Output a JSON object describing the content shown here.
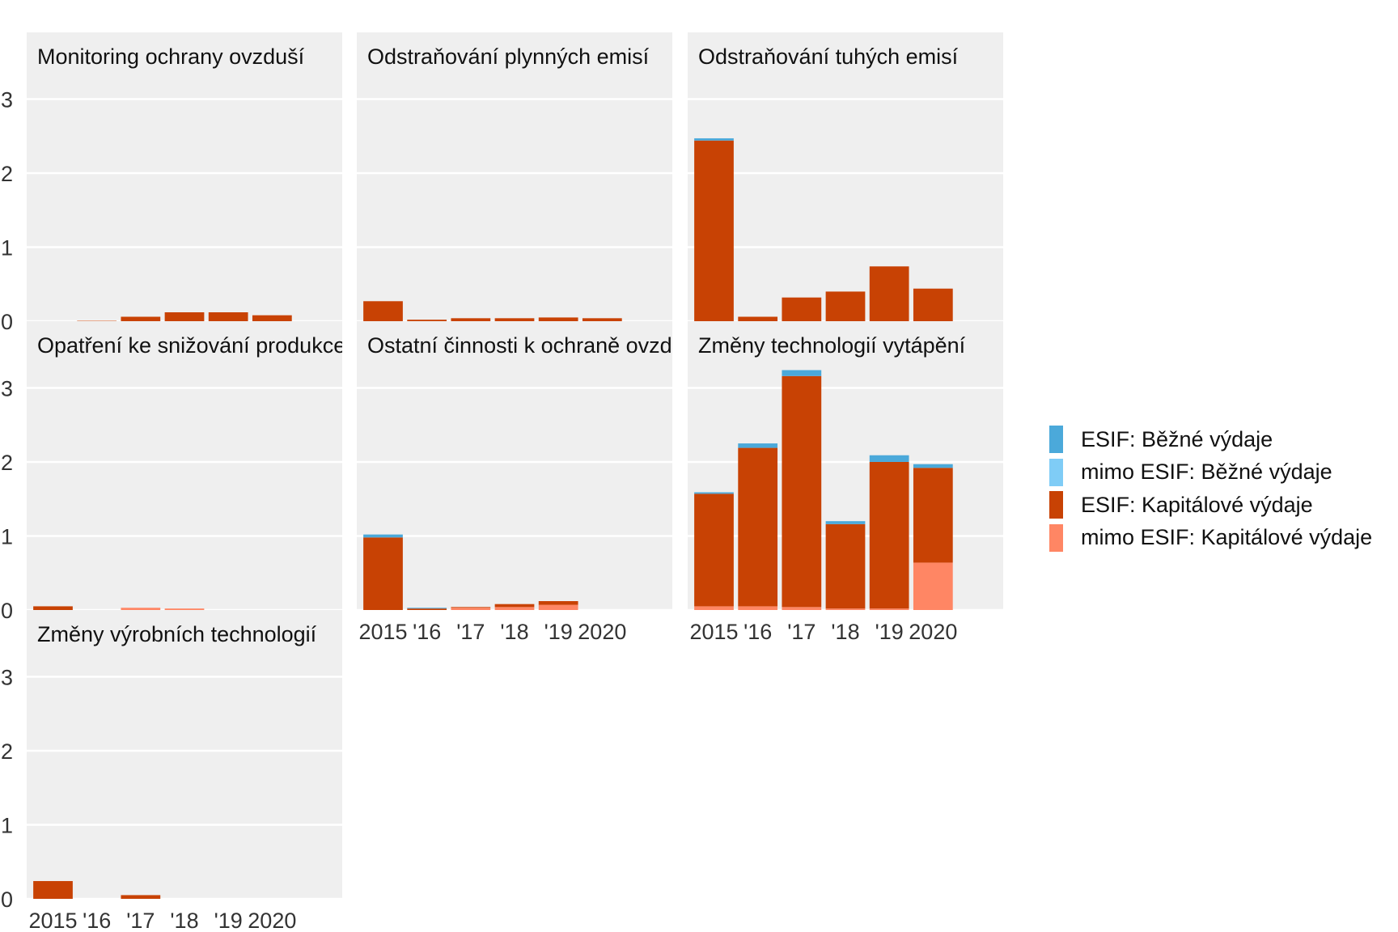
{
  "chart_data": {
    "type": "bar",
    "stacked": true,
    "facet": true,
    "ylim": [
      0,
      3.3
    ],
    "y_ticks": [
      0,
      1,
      2,
      3
    ],
    "x_tick_labels": [
      "2015",
      "'16",
      "'17",
      "'18",
      "'19",
      "2020"
    ],
    "grid": true,
    "legend_placement": "right",
    "series": [
      {
        "name": "ESIF: Běžné výdaje",
        "color": "#4BA9DA"
      },
      {
        "name": "mimo ESIF: Běžné výdaje",
        "color": "#7FCCF6"
      },
      {
        "name": "ESIF: Kapitálové výdaje",
        "color": "#C84204"
      },
      {
        "name": "mimo ESIF: Kapitálové výdaje",
        "color": "#FF8664"
      }
    ],
    "stack_order_bottom_to_top": [
      "mimo ESIF: Kapitálové výdaje",
      "ESIF: Kapitálové výdaje",
      "mimo ESIF: Běžné výdaje",
      "ESIF: Běžné výdaje"
    ],
    "panels": [
      {
        "title": "Monitoring ochrany ovzduší",
        "values": {
          "ESIF: Běžné výdaje": [
            0,
            0,
            0,
            0,
            0,
            0
          ],
          "mimo ESIF: Běžné výdaje": [
            0,
            0,
            0,
            0,
            0,
            0
          ],
          "ESIF: Kapitálové výdaje": [
            0,
            0.005,
            0.06,
            0.12,
            0.12,
            0.08
          ],
          "mimo ESIF: Kapitálové výdaje": [
            0,
            0,
            0,
            0,
            0,
            0
          ]
        }
      },
      {
        "title": "Odstraňování plynných emisí",
        "values": {
          "ESIF: Běžné výdaje": [
            0,
            0,
            0,
            0,
            0,
            0
          ],
          "mimo ESIF: Běžné výdaje": [
            0,
            0,
            0,
            0,
            0,
            0
          ],
          "ESIF: Kapitálové výdaje": [
            0.27,
            0.02,
            0.04,
            0.04,
            0.05,
            0.04
          ],
          "mimo ESIF: Kapitálové výdaje": [
            0,
            0,
            0,
            0,
            0,
            0
          ]
        }
      },
      {
        "title": "Odstraňování tuhých emisí",
        "values": {
          "ESIF: Běžné výdaje": [
            0.03,
            0,
            0,
            0,
            0,
            0
          ],
          "mimo ESIF: Běžné výdaje": [
            0,
            0,
            0,
            0,
            0,
            0
          ],
          "ESIF: Kapitálové výdaje": [
            2.44,
            0.06,
            0.32,
            0.4,
            0.74,
            0.44
          ],
          "mimo ESIF: Kapitálové výdaje": [
            0,
            0,
            0,
            0,
            0,
            0
          ]
        }
      },
      {
        "title": "Opatření ke snižování produkce znečišťujících látek",
        "values": {
          "ESIF: Běžné výdaje": [
            0,
            0,
            0,
            0,
            0,
            0
          ],
          "mimo ESIF: Běžné výdaje": [
            0,
            0,
            0,
            0,
            0,
            0
          ],
          "ESIF: Kapitálové výdaje": [
            0.05,
            0,
            0,
            0,
            0,
            0
          ],
          "mimo ESIF: Kapitálové výdaje": [
            0,
            0,
            0.03,
            0.02,
            0,
            0
          ]
        }
      },
      {
        "title": "Ostatní činnosti k ochraně ovzduší",
        "values": {
          "ESIF: Běžné výdaje": [
            0.04,
            0.01,
            0,
            0,
            0,
            0
          ],
          "mimo ESIF: Běžné výdaje": [
            0,
            0,
            0,
            0,
            0,
            0
          ],
          "ESIF: Kapitálové výdaje": [
            0.98,
            0.02,
            0.01,
            0.04,
            0.05,
            0
          ],
          "mimo ESIF: Kapitálové výdaje": [
            0,
            0,
            0.03,
            0.04,
            0.07,
            0
          ]
        }
      },
      {
        "title": "Změny technologií vytápění",
        "values": {
          "ESIF: Běžné výdaje": [
            0.02,
            0.06,
            0.08,
            0.04,
            0.09,
            0.05
          ],
          "mimo ESIF: Běžné výdaje": [
            0,
            0,
            0,
            0,
            0,
            0
          ],
          "ESIF: Kapitálové výdaje": [
            1.52,
            2.14,
            3.12,
            1.14,
            1.98,
            1.28
          ],
          "mimo ESIF: Kapitálové výdaje": [
            0.05,
            0.05,
            0.04,
            0.02,
            0.02,
            0.64
          ]
        }
      },
      {
        "title": "Změny výrobních technologií",
        "values": {
          "ESIF: Běžné výdaje": [
            0,
            0,
            0,
            0,
            0,
            0
          ],
          "mimo ESIF: Běžné výdaje": [
            0,
            0,
            0,
            0,
            0,
            0
          ],
          "ESIF: Kapitálové výdaje": [
            0.24,
            0,
            0.05,
            0,
            0,
            0
          ],
          "mimo ESIF: Kapitálové výdaje": [
            0,
            0,
            0,
            0,
            0,
            0
          ]
        }
      }
    ]
  }
}
